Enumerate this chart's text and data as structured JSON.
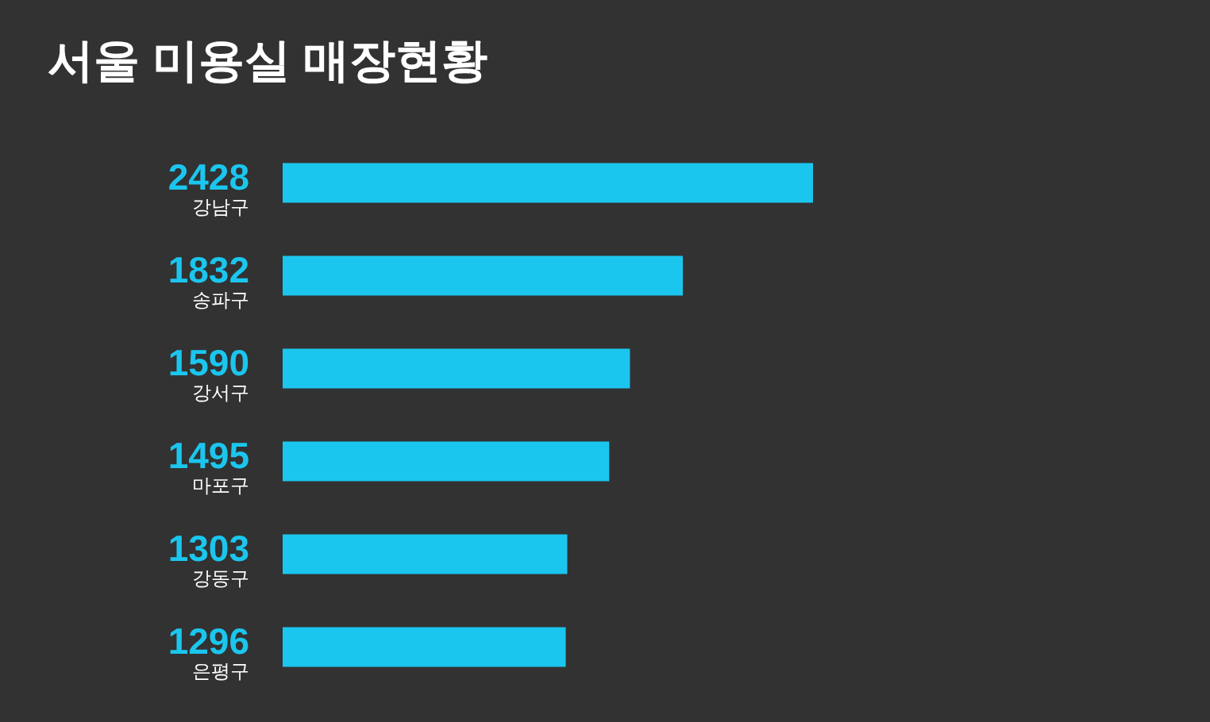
{
  "chart_data": {
    "type": "bar",
    "title": "서울 미용실 매장현황",
    "orientation": "horizontal",
    "categories": [
      "강남구",
      "송파구",
      "강서구",
      "마포구",
      "강동구",
      "은평구"
    ],
    "values": [
      2428,
      1832,
      1590,
      1495,
      1303,
      1296
    ],
    "color": "#1bc6ee",
    "data_labels": true
  }
}
